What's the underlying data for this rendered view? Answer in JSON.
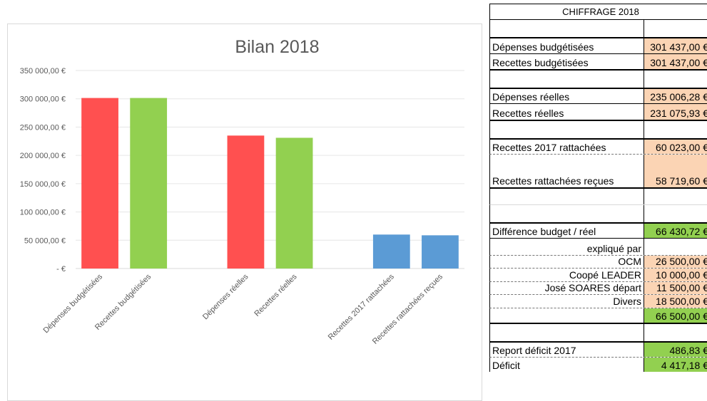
{
  "chart_data": {
    "type": "bar",
    "title": "Bilan 2018",
    "categories": [
      "Dépenses budgétisées",
      "Recettes budgétisées",
      "",
      "Dépenses réelles",
      "Recettes réelles",
      "",
      "Recettes 2017 rattachées",
      "Recettes rattachées reçues"
    ],
    "values": [
      301437.0,
      301437.0,
      0,
      235006.28,
      231075.93,
      0,
      60023.0,
      58719.6
    ],
    "colors": [
      "#ff5050",
      "#92d050",
      null,
      "#ff5050",
      "#92d050",
      null,
      "#5b9bd5",
      "#5b9bd5"
    ],
    "ylim": [
      0,
      350000
    ],
    "yticks": [
      {
        "value": 0,
        "label": "-   €"
      },
      {
        "value": 50000,
        "label": "50 000,00 €"
      },
      {
        "value": 100000,
        "label": "100 000,00 €"
      },
      {
        "value": 150000,
        "label": "150 000,00 €"
      },
      {
        "value": 200000,
        "label": "200 000,00 €"
      },
      {
        "value": 250000,
        "label": "250 000,00 €"
      },
      {
        "value": 300000,
        "label": "300 000,00 €"
      },
      {
        "value": 350000,
        "label": "350 000,00 €"
      }
    ],
    "grid": true
  },
  "table": {
    "rows": [
      {
        "label": "CHIFFRAGE 2018",
        "value": "",
        "align": "center",
        "fill": "",
        "h": 23,
        "bt": "1px solid #000",
        "bb": "1px solid #000"
      },
      {
        "label": "",
        "value": "",
        "align": "left",
        "fill": "",
        "h": 24,
        "bt": "0",
        "bb": "0"
      },
      {
        "label": "Dépenses budgétisées",
        "value": "301 437,00 €",
        "align": "left",
        "fill": "#fbd4b4",
        "h": 24,
        "bt": "2px solid #000",
        "bb": "1px solid #000"
      },
      {
        "label": "Recettes budgétisées",
        "value": "301 437,00 €",
        "align": "left",
        "fill": "#fbd4b4",
        "h": 23,
        "bt": "0",
        "bb": "2px solid #000"
      },
      {
        "label": "",
        "value": "",
        "align": "left",
        "fill": "",
        "h": 24,
        "bt": "0",
        "bb": "0"
      },
      {
        "label": "Dépenses réelles",
        "value": "235 006,28 €",
        "align": "left",
        "fill": "#fbd4b4",
        "h": 23,
        "bt": "2px solid #000",
        "bb": "1px solid #000"
      },
      {
        "label": "Recettes réelles",
        "value": "231 075,93 €",
        "align": "left",
        "fill": "#fbd4b4",
        "h": 24,
        "bt": "0",
        "bb": "2px solid #000"
      },
      {
        "label": "",
        "value": "",
        "align": "left",
        "fill": "",
        "h": 24,
        "bt": "0",
        "bb": "0"
      },
      {
        "label": "Recettes 2017 rattachées",
        "value": "60 023,00 €",
        "align": "left",
        "fill": "#fbd4b4",
        "h": 23,
        "bt": "2px solid #000",
        "bb": "1px dashed #777"
      },
      {
        "label": "Recettes rattachées reçues",
        "value": "58 719,60 €",
        "align": "left",
        "fill": "#fbd4b4",
        "h": 48,
        "bt": "0",
        "bb": "2px solid #000"
      },
      {
        "label": "",
        "value": "",
        "align": "left",
        "fill": "",
        "h": 23,
        "bt": "0",
        "bb": "1px solid #d9d9d9"
      },
      {
        "label": "",
        "value": "",
        "align": "left",
        "fill": "",
        "h": 24,
        "bt": "0",
        "bb": "0"
      },
      {
        "label": "Différence budget / réel",
        "value": "66 430,72 €",
        "align": "left",
        "fill": "#92d050",
        "h": 23,
        "bt": "2px solid #000",
        "bb": "1px solid #000"
      },
      {
        "label": "expliqué par",
        "value": "",
        "align": "right",
        "fill": "",
        "h": 24,
        "bt": "0",
        "bb": "1px dashed #777"
      },
      {
        "label": "OCM",
        "value": "26 500,00 €",
        "align": "right",
        "fill": "#fbd4b4",
        "h": 18,
        "bt": "0",
        "bb": "1px dashed #777"
      },
      {
        "label": "Coopé LEADER",
        "value": "10 000,00 €",
        "align": "right",
        "fill": "#fbd4b4",
        "h": 19,
        "bt": "0",
        "bb": "1px dashed #777"
      },
      {
        "label": "José SOARES départ",
        "value": "11 500,00 €",
        "align": "right",
        "fill": "#fbd4b4",
        "h": 18,
        "bt": "0",
        "bb": "1px dashed #777"
      },
      {
        "label": "Divers",
        "value": "18 500,00 €",
        "align": "right",
        "fill": "#fbd4b4",
        "h": 19,
        "bt": "0",
        "bb": "1px dashed #777"
      },
      {
        "label": "",
        "value": "66 500,00 €",
        "align": "right",
        "fill": "#92d050",
        "h": 22,
        "bt": "0",
        "bb": "2px solid #000"
      },
      {
        "label": "",
        "value": "",
        "align": "left",
        "fill": "",
        "h": 24,
        "bt": "0",
        "bb": "0"
      },
      {
        "label": "Report déficit 2017",
        "value": "486,83 €",
        "align": "left",
        "fill": "#92d050",
        "h": 23,
        "bt": "2px solid #000",
        "bb": "1px dashed #777"
      },
      {
        "label": "Déficit",
        "value": "4 417,18 €",
        "align": "left",
        "fill": "#92d050",
        "h": 20,
        "bt": "0",
        "bb": "0"
      }
    ]
  }
}
